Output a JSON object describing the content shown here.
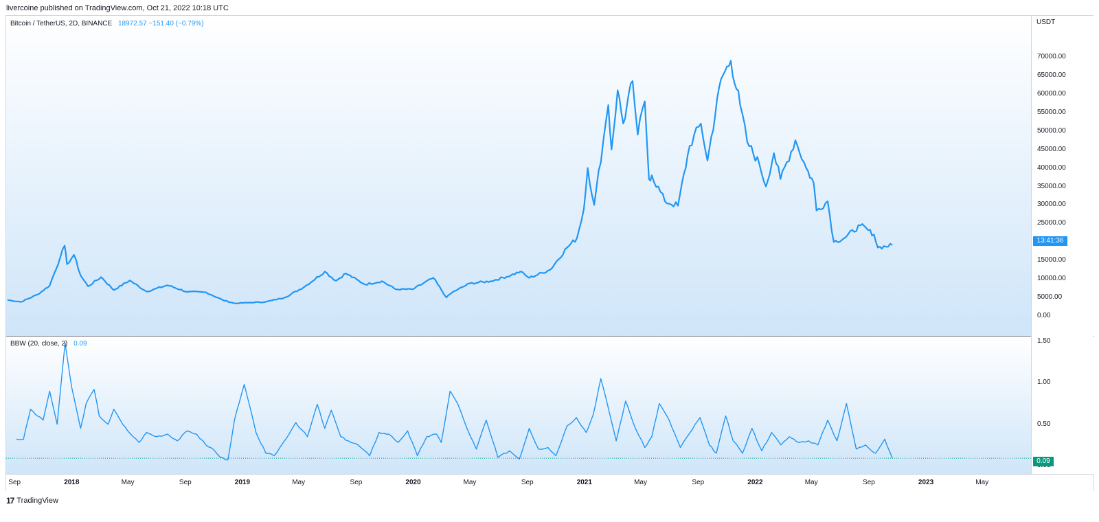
{
  "publish_line": "livercoine published on TradingView.com, Oct 21, 2022 10:18 UTC",
  "footer": {
    "logo": "17",
    "brand": "TradingView"
  },
  "colors": {
    "line": "#2196f3",
    "bbw_tag": "#089981",
    "price_tag": "#2196f3"
  },
  "chart_data": [
    {
      "type": "line",
      "legend_symbol": "Bitcoin / TetherUS, 2D, BINANCE",
      "legend_values": "18972.57  −151.40 (−0.79%)",
      "y_unit": "USDT",
      "y_ticks": [
        "70000.00",
        "65000.00",
        "60000.00",
        "55000.00",
        "50000.00",
        "45000.00",
        "40000.00",
        "35000.00",
        "30000.00",
        "25000.00",
        "20000.00",
        "15000.00",
        "10000.00",
        "5000.00",
        "0.00"
      ],
      "ylim": [
        0,
        70000
      ],
      "current_price_label": "13:41:36",
      "current_price": 18972.57,
      "x": [
        "2017-08-17",
        "2017-09-15",
        "2017-10-20",
        "2017-11-15",
        "2017-12-08",
        "2017-12-17",
        "2017-12-22",
        "2018-01-06",
        "2018-01-20",
        "2018-02-05",
        "2018-03-05",
        "2018-04-01",
        "2018-05-05",
        "2018-06-10",
        "2018-07-25",
        "2018-09-05",
        "2018-10-15",
        "2018-11-20",
        "2018-12-15",
        "2019-01-15",
        "2019-02-20",
        "2019-04-02",
        "2019-05-15",
        "2019-06-26",
        "2019-07-20",
        "2019-08-10",
        "2019-09-20",
        "2019-10-26",
        "2019-11-25",
        "2019-12-31",
        "2020-02-13",
        "2020-03-12",
        "2020-03-25",
        "2020-05-01",
        "2020-06-15",
        "2020-07-28",
        "2020-08-17",
        "2020-09-05",
        "2020-10-20",
        "2020-11-25",
        "2020-12-16",
        "2020-12-31",
        "2021-01-08",
        "2021-01-22",
        "2021-02-10",
        "2021-02-21",
        "2021-02-28",
        "2021-03-13",
        "2021-03-25",
        "2021-04-14",
        "2021-04-25",
        "2021-05-10",
        "2021-05-19",
        "2021-05-25",
        "2021-06-22",
        "2021-07-20",
        "2021-08-14",
        "2021-09-07",
        "2021-09-21",
        "2021-10-20",
        "2021-11-10",
        "2021-11-30",
        "2021-12-15",
        "2022-01-10",
        "2022-01-24",
        "2022-02-10",
        "2022-02-24",
        "2022-03-28",
        "2022-04-20",
        "2022-05-06",
        "2022-05-12",
        "2022-06-05",
        "2022-06-18",
        "2022-07-10",
        "2022-08-14",
        "2022-09-12",
        "2022-09-20",
        "2022-10-21"
      ],
      "y": [
        4300,
        3800,
        5800,
        8200,
        16000,
        19000,
        14000,
        16500,
        11000,
        8000,
        10500,
        7000,
        9600,
        6600,
        8300,
        6500,
        6400,
        4300,
        3400,
        3600,
        3800,
        5000,
        8000,
        12000,
        9500,
        11500,
        8500,
        9400,
        7200,
        7200,
        10300,
        5000,
        6400,
        8800,
        9400,
        11000,
        12000,
        10300,
        12500,
        18500,
        21000,
        29000,
        40000,
        30000,
        47000,
        57000,
        45000,
        61000,
        52000,
        63500,
        49000,
        58000,
        37000,
        38000,
        31000,
        29800,
        46000,
        52000,
        42000,
        64000,
        69000,
        57000,
        47000,
        41000,
        35000,
        44000,
        37000,
        47500,
        40000,
        36000,
        28500,
        31000,
        20000,
        21000,
        24500,
        22000,
        18500,
        19100
      ]
    },
    {
      "type": "line",
      "legend_symbol": "BBW (20, close, 2)",
      "legend_values": "0.09",
      "y_ticks": [
        "1.50",
        "1.00",
        "0.50",
        "0.00"
      ],
      "ylim": [
        0,
        1.5
      ],
      "current_value_label": "0.09",
      "current_value": 0.09,
      "x": [
        "2017-09-05",
        "2017-09-20",
        "2017-10-05",
        "2017-10-20",
        "2017-11-01",
        "2017-11-15",
        "2017-12-01",
        "2017-12-18",
        "2018-01-01",
        "2018-01-20",
        "2018-02-01",
        "2018-02-18",
        "2018-03-01",
        "2018-03-20",
        "2018-04-01",
        "2018-04-20",
        "2018-05-01",
        "2018-05-25",
        "2018-06-10",
        "2018-07-01",
        "2018-07-25",
        "2018-08-15",
        "2018-09-05",
        "2018-09-25",
        "2018-10-15",
        "2018-10-30",
        "2018-11-15",
        "2018-12-01",
        "2018-12-15",
        "2019-01-05",
        "2019-01-30",
        "2019-02-20",
        "2019-03-10",
        "2019-04-01",
        "2019-04-25",
        "2019-05-20",
        "2019-06-10",
        "2019-06-26",
        "2019-07-10",
        "2019-07-30",
        "2019-08-15",
        "2019-09-05",
        "2019-09-30",
        "2019-10-20",
        "2019-11-10",
        "2019-11-30",
        "2019-12-20",
        "2020-01-10",
        "2020-01-30",
        "2020-02-20",
        "2020-03-01",
        "2020-03-20",
        "2020-04-05",
        "2020-04-25",
        "2020-05-15",
        "2020-06-05",
        "2020-06-30",
        "2020-07-25",
        "2020-08-15",
        "2020-09-05",
        "2020-09-25",
        "2020-10-15",
        "2020-11-01",
        "2020-11-25",
        "2020-12-15",
        "2021-01-05",
        "2021-01-20",
        "2021-02-05",
        "2021-02-20",
        "2021-03-10",
        "2021-03-30",
        "2021-04-20",
        "2021-05-10",
        "2021-05-25",
        "2021-06-10",
        "2021-07-01",
        "2021-07-25",
        "2021-08-15",
        "2021-09-05",
        "2021-09-25",
        "2021-10-10",
        "2021-10-30",
        "2021-11-15",
        "2021-12-05",
        "2021-12-25",
        "2022-01-15",
        "2022-02-05",
        "2022-02-25",
        "2022-03-15",
        "2022-04-05",
        "2022-04-25",
        "2022-05-15",
        "2022-06-05",
        "2022-06-25",
        "2022-07-15",
        "2022-08-05",
        "2022-08-25",
        "2022-09-15",
        "2022-10-05",
        "2022-10-21"
      ],
      "y": [
        0.32,
        0.32,
        0.68,
        0.6,
        0.55,
        0.9,
        0.5,
        1.48,
        0.95,
        0.45,
        0.75,
        0.92,
        0.6,
        0.5,
        0.68,
        0.5,
        0.42,
        0.28,
        0.4,
        0.35,
        0.38,
        0.3,
        0.42,
        0.38,
        0.25,
        0.2,
        0.1,
        0.07,
        0.55,
        0.98,
        0.4,
        0.15,
        0.12,
        0.3,
        0.52,
        0.35,
        0.74,
        0.45,
        0.67,
        0.35,
        0.3,
        0.25,
        0.12,
        0.4,
        0.38,
        0.28,
        0.42,
        0.12,
        0.35,
        0.38,
        0.28,
        0.9,
        0.75,
        0.45,
        0.2,
        0.55,
        0.1,
        0.18,
        0.08,
        0.45,
        0.2,
        0.22,
        0.12,
        0.48,
        0.58,
        0.4,
        0.62,
        1.05,
        0.72,
        0.3,
        0.78,
        0.45,
        0.22,
        0.35,
        0.75,
        0.55,
        0.22,
        0.4,
        0.58,
        0.25,
        0.15,
        0.6,
        0.3,
        0.15,
        0.45,
        0.18,
        0.4,
        0.25,
        0.35,
        0.28,
        0.3,
        0.25,
        0.55,
        0.3,
        0.75,
        0.2,
        0.25,
        0.15,
        0.32,
        0.09
      ]
    }
  ],
  "x_axis": [
    {
      "label": "Sep",
      "date": "2017-09-01",
      "bold": false
    },
    {
      "label": "2018",
      "date": "2018-01-01",
      "bold": true
    },
    {
      "label": "May",
      "date": "2018-05-01",
      "bold": false
    },
    {
      "label": "Sep",
      "date": "2018-09-01",
      "bold": false
    },
    {
      "label": "2019",
      "date": "2019-01-01",
      "bold": true
    },
    {
      "label": "May",
      "date": "2019-05-01",
      "bold": false
    },
    {
      "label": "Sep",
      "date": "2019-09-01",
      "bold": false
    },
    {
      "label": "2020",
      "date": "2020-01-01",
      "bold": true
    },
    {
      "label": "May",
      "date": "2020-05-01",
      "bold": false
    },
    {
      "label": "Sep",
      "date": "2020-09-01",
      "bold": false
    },
    {
      "label": "2021",
      "date": "2021-01-01",
      "bold": true
    },
    {
      "label": "May",
      "date": "2021-05-01",
      "bold": false
    },
    {
      "label": "Sep",
      "date": "2021-09-01",
      "bold": false
    },
    {
      "label": "2022",
      "date": "2022-01-01",
      "bold": true
    },
    {
      "label": "May",
      "date": "2022-05-01",
      "bold": false
    },
    {
      "label": "Sep",
      "date": "2022-09-01",
      "bold": false
    },
    {
      "label": "2023",
      "date": "2023-01-01",
      "bold": true
    },
    {
      "label": "May",
      "date": "2023-05-01",
      "bold": false
    }
  ]
}
